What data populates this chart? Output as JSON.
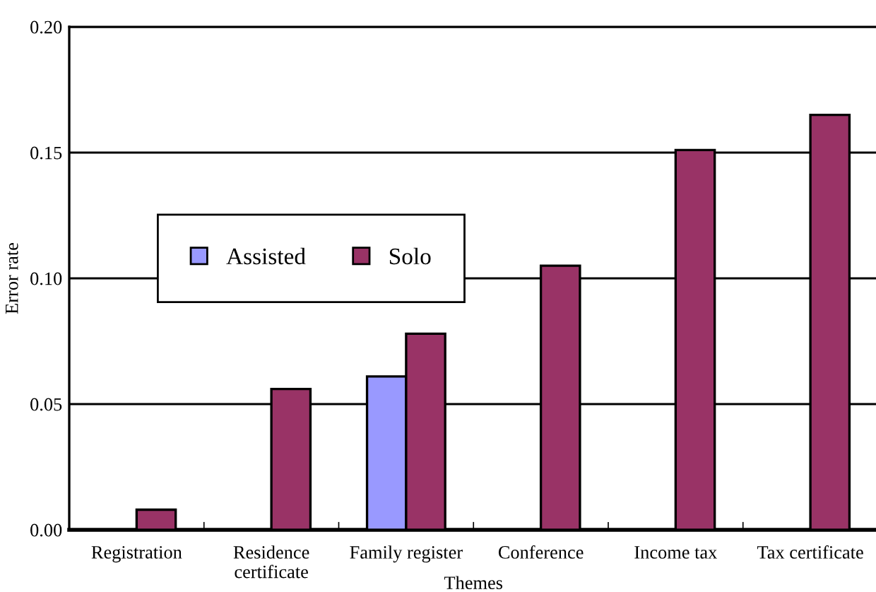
{
  "chart_data": {
    "type": "bar",
    "xlabel": "Themes",
    "ylabel": "Error rate",
    "categories": [
      "Registration",
      "Residence\ncertificate",
      "Family register",
      "Conference",
      "Income tax",
      "Tax certificate"
    ],
    "series": [
      {
        "name": "Assisted",
        "color": "#9999ff",
        "values": [
          null,
          null,
          0.061,
          null,
          null,
          null
        ]
      },
      {
        "name": "Solo",
        "color": "#993366",
        "values": [
          0.008,
          0.056,
          0.078,
          0.105,
          0.151,
          0.165
        ]
      }
    ],
    "ylim": [
      0,
      0.2
    ],
    "yticks": [
      {
        "value": 0,
        "label": "0.00"
      },
      {
        "value": 0.05,
        "label": "0.05"
      },
      {
        "value": 0.1,
        "label": "0.10"
      },
      {
        "value": 0.15,
        "label": "0.15"
      },
      {
        "value": 0.2,
        "label": "0.20"
      }
    ],
    "grid": "y",
    "legend": "top left"
  }
}
